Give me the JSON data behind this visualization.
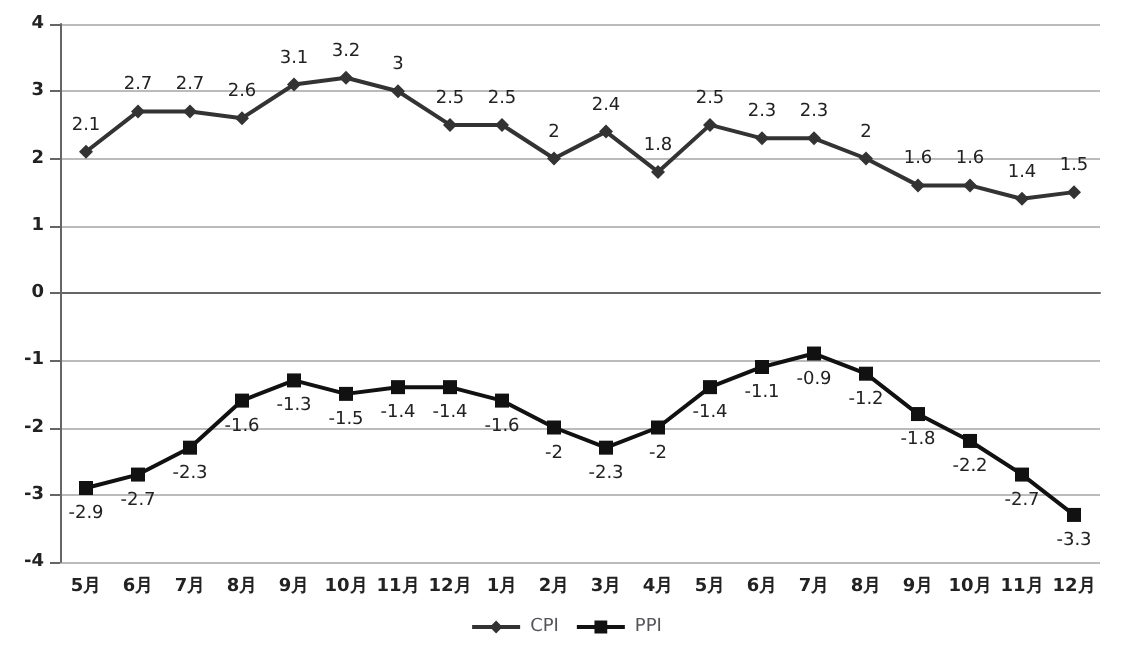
{
  "chart_data": {
    "type": "line",
    "categories": [
      "5月",
      "6月",
      "7月",
      "8月",
      "9月",
      "10月",
      "11月",
      "12月",
      "1月",
      "2月",
      "3月",
      "4月",
      "5月",
      "6月",
      "7月",
      "8月",
      "9月",
      "10月",
      "11月",
      "12月"
    ],
    "series": [
      {
        "name": "CPI",
        "color": "#333333",
        "marker": "diamond",
        "values": [
          2.1,
          2.7,
          2.7,
          2.6,
          3.1,
          3.2,
          3,
          2.5,
          2.5,
          2,
          2.4,
          1.8,
          2.5,
          2.3,
          2.3,
          2,
          1.6,
          1.6,
          1.4,
          1.5
        ]
      },
      {
        "name": "PPI",
        "color": "#111111",
        "marker": "square",
        "values": [
          -2.9,
          -2.7,
          -2.3,
          -1.6,
          -1.3,
          -1.5,
          -1.4,
          -1.4,
          -1.6,
          -2,
          -2.3,
          -2,
          -1.4,
          -1.1,
          -0.9,
          -1.2,
          -1.8,
          -2.2,
          -2.7,
          -3.3
        ]
      }
    ],
    "ylim": [
      -4,
      4
    ],
    "yticks": [
      -4,
      -3,
      -2,
      -1,
      0,
      1,
      2,
      3,
      4
    ],
    "grid": "y",
    "legend": "bottom",
    "data_labels": true,
    "line_style": "solid"
  }
}
